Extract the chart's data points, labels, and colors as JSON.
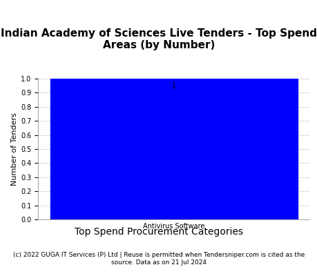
{
  "title": "Indian Academy of Sciences Live Tenders - Top Spend\nAreas (by Number)",
  "categories": [
    "Antivirus Software"
  ],
  "values": [
    1
  ],
  "bar_color": "#0000FF",
  "ylabel": "Number of Tenders",
  "xlabel": "Top Spend Procurement Categories",
  "ylim": [
    0.0,
    1.0
  ],
  "yticks": [
    0.0,
    0.1,
    0.2,
    0.3,
    0.4,
    0.5,
    0.6,
    0.7,
    0.8,
    0.9,
    1.0
  ],
  "bar_label_fontsize": 7,
  "title_fontsize": 11,
  "xlabel_fontsize": 10,
  "ylabel_fontsize": 8,
  "xtick_fontsize": 7,
  "ytick_fontsize": 7,
  "footer": "(c) 2022 GUGA IT Services (P) Ltd | Reuse is permitted when Tendersniper.com is cited as the\nsource. Data as on 21 Jul 2024",
  "footer_fontsize": 6.5,
  "grid_color": "#bbbbbb",
  "background_color": "#ffffff"
}
